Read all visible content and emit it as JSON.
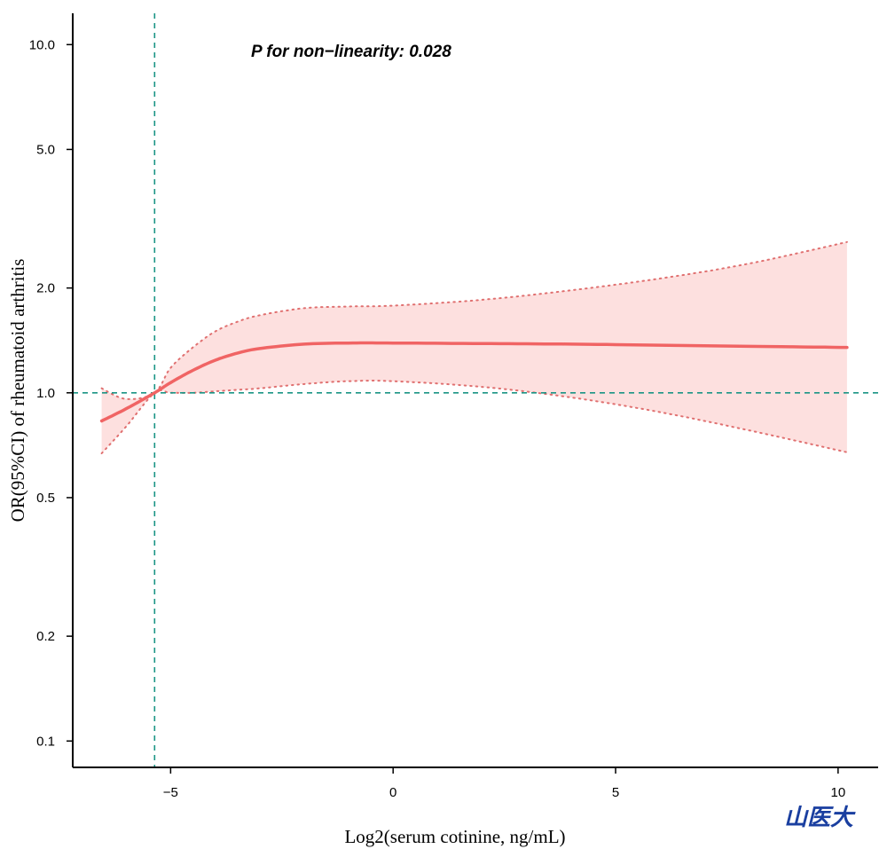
{
  "chart_data": {
    "type": "line",
    "xlabel": "Log2(serum cotinine, ng/mL)",
    "ylabel": "OR(95%CI) of rheumatoid arthritis",
    "annotation": "P for non−linearity: 0.028",
    "y_scale": "log",
    "xlim": [
      -7.2,
      10.9
    ],
    "ylim": [
      0.084,
      12.3
    ],
    "x_ticks": [
      -5,
      0,
      5,
      10
    ],
    "x_tick_labels": [
      "−5",
      "0",
      "5",
      "10"
    ],
    "y_ticks": [
      0.1,
      0.2,
      0.5,
      1.0,
      2.0,
      5.0,
      10.0
    ],
    "y_tick_labels": [
      "0.1",
      "0.2",
      "0.5",
      "1.0",
      "2.0",
      "5.0",
      "10.0"
    ],
    "reference_lines": {
      "x": -5.36,
      "y": 1.0,
      "color": "#1a9485",
      "style": "dashed"
    },
    "grid": false,
    "x": [
      -6.55,
      -6.0,
      -5.36,
      -5.0,
      -4.5,
      -4.0,
      -3.5,
      -3.0,
      -2.0,
      -1.0,
      0,
      2,
      4,
      6,
      8,
      10.2
    ],
    "series": [
      {
        "role": "fit",
        "color": "#f06464",
        "values": [
          0.83,
          0.9,
          1.0,
          1.07,
          1.16,
          1.24,
          1.3,
          1.34,
          1.38,
          1.39,
          1.39,
          1.385,
          1.38,
          1.37,
          1.36,
          1.35
        ]
      },
      {
        "role": "upper_ci",
        "color": "#e07070",
        "values": [
          1.03,
          0.96,
          1.0,
          1.18,
          1.35,
          1.5,
          1.6,
          1.67,
          1.75,
          1.77,
          1.78,
          1.85,
          1.97,
          2.13,
          2.35,
          2.71
        ]
      },
      {
        "role": "lower_ci",
        "color": "#e07070",
        "values": [
          0.67,
          0.8,
          1.0,
          1.0,
          1.0,
          1.01,
          1.02,
          1.03,
          1.06,
          1.08,
          1.08,
          1.04,
          0.97,
          0.88,
          0.78,
          0.675
        ]
      }
    ],
    "ci_fill_color": "#fde0df"
  },
  "logo_text": "山医大"
}
